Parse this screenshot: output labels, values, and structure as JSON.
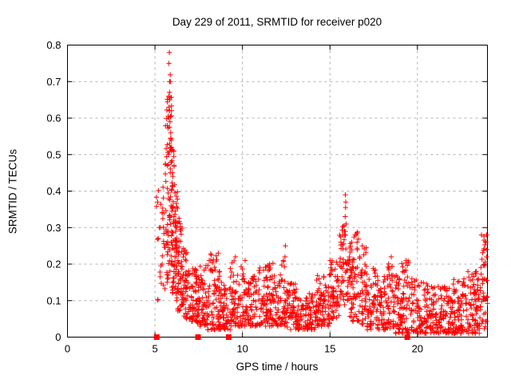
{
  "chart_data": {
    "type": "scatter",
    "title": "Day 229 of 2011, SRMTID for receiver p020",
    "xlabel": "GPS time / hours",
    "ylabel": "SRMTID / TECUs",
    "xlim": [
      0,
      24
    ],
    "ylim": [
      0,
      0.8
    ],
    "xticks": [
      0,
      5,
      10,
      15,
      20
    ],
    "xtick_labels": [
      "0",
      "5",
      "10",
      "15",
      "20"
    ],
    "yticks": [
      0,
      0.1,
      0.2,
      0.3,
      0.4,
      0.5,
      0.6,
      0.7,
      0.8
    ],
    "ytick_labels": [
      "0",
      "0.1",
      "0.2",
      "0.3",
      "0.4",
      "0.5",
      "0.6",
      "0.7",
      "0.8"
    ],
    "grid": true,
    "legend": "none",
    "marker": "plus",
    "point_color": "#ff0000",
    "grid_color": "#b0b0b0",
    "axis_color": "#000000",
    "background_color": "#ffffff",
    "seed": 20110229,
    "key_points": [
      [
        5.82,
        0.78
      ],
      [
        5.8,
        0.75
      ],
      [
        5.88,
        0.7
      ],
      [
        5.78,
        0.66
      ],
      [
        5.84,
        0.65
      ],
      [
        5.8,
        0.63
      ],
      [
        5.82,
        0.62
      ],
      [
        5.79,
        0.6
      ],
      [
        5.86,
        0.59
      ],
      [
        5.9,
        0.56
      ],
      [
        5.83,
        0.53
      ],
      [
        5.95,
        0.52
      ],
      [
        5.77,
        0.5
      ],
      [
        5.7,
        0.47
      ],
      [
        6.0,
        0.45
      ],
      [
        5.15,
        0.37
      ],
      [
        5.25,
        0.3
      ],
      [
        15.88,
        0.39
      ],
      [
        15.9,
        0.37
      ],
      [
        15.89,
        0.355
      ],
      [
        15.87,
        0.33
      ],
      [
        15.92,
        0.31
      ],
      [
        16.5,
        0.28
      ],
      [
        16.55,
        0.26
      ],
      [
        16.85,
        0.25
      ],
      [
        18.5,
        0.22
      ],
      [
        19.35,
        0.21
      ],
      [
        23.95,
        0.28
      ],
      [
        23.9,
        0.26
      ],
      [
        23.97,
        0.24
      ],
      [
        8.62,
        0.23
      ],
      [
        9.6,
        0.22
      ],
      [
        10.15,
        0.21
      ],
      [
        11.55,
        0.2
      ],
      [
        12.43,
        0.22
      ],
      [
        12.45,
        0.25
      ]
    ],
    "density_segments": [
      [
        5.08,
        5.35,
        0.1,
        0.42,
        12,
        1.3
      ],
      [
        5.35,
        5.6,
        0.12,
        0.5,
        20,
        1.2
      ],
      [
        5.6,
        5.8,
        0.15,
        0.66,
        38,
        1.1
      ],
      [
        5.8,
        5.95,
        0.18,
        0.72,
        40,
        1.0
      ],
      [
        5.95,
        6.1,
        0.12,
        0.52,
        45,
        1.1
      ],
      [
        6.1,
        6.3,
        0.1,
        0.42,
        45,
        1.2
      ],
      [
        6.3,
        6.55,
        0.07,
        0.33,
        45,
        1.3
      ],
      [
        6.55,
        6.9,
        0.05,
        0.26,
        50,
        1.4
      ],
      [
        6.9,
        7.4,
        0.04,
        0.19,
        60,
        1.5
      ],
      [
        7.4,
        8.0,
        0.03,
        0.2,
        70,
        1.6
      ],
      [
        8.0,
        8.7,
        0.02,
        0.23,
        80,
        1.7
      ],
      [
        8.7,
        9.3,
        0.02,
        0.16,
        60,
        1.6
      ],
      [
        9.3,
        10.0,
        0.03,
        0.21,
        70,
        1.6
      ],
      [
        10.0,
        10.8,
        0.03,
        0.18,
        80,
        1.6
      ],
      [
        10.8,
        11.6,
        0.03,
        0.2,
        80,
        1.6
      ],
      [
        11.6,
        12.5,
        0.03,
        0.21,
        85,
        1.6
      ],
      [
        12.5,
        13.3,
        0.02,
        0.15,
        80,
        1.5
      ],
      [
        13.3,
        14.2,
        0.02,
        0.12,
        85,
        1.4
      ],
      [
        14.2,
        15.0,
        0.03,
        0.17,
        80,
        1.4
      ],
      [
        15.0,
        15.55,
        0.05,
        0.21,
        60,
        1.2
      ],
      [
        15.55,
        15.95,
        0.08,
        0.31,
        45,
        1.0
      ],
      [
        15.95,
        16.3,
        0.05,
        0.26,
        45,
        1.2
      ],
      [
        16.3,
        16.65,
        0.04,
        0.29,
        35,
        1.2
      ],
      [
        16.65,
        17.1,
        0.03,
        0.25,
        45,
        1.3
      ],
      [
        17.1,
        17.7,
        0.02,
        0.2,
        55,
        1.5
      ],
      [
        17.7,
        18.3,
        0.02,
        0.18,
        60,
        1.5
      ],
      [
        18.3,
        18.7,
        0.02,
        0.22,
        45,
        1.4
      ],
      [
        18.7,
        19.1,
        0.01,
        0.18,
        45,
        1.5
      ],
      [
        19.1,
        19.5,
        0.01,
        0.22,
        45,
        1.4
      ],
      [
        19.5,
        20.4,
        0.01,
        0.16,
        75,
        1.5
      ],
      [
        20.4,
        21.2,
        0.01,
        0.15,
        75,
        1.5
      ],
      [
        21.2,
        22.0,
        0.01,
        0.14,
        80,
        1.4
      ],
      [
        22.0,
        22.8,
        0.01,
        0.16,
        85,
        1.4
      ],
      [
        22.8,
        23.6,
        0.01,
        0.18,
        85,
        1.3
      ],
      [
        23.6,
        24.0,
        0.02,
        0.28,
        45,
        1.2
      ]
    ],
    "baseline_squares": [
      5.1,
      7.46,
      9.21,
      19.42
    ]
  }
}
